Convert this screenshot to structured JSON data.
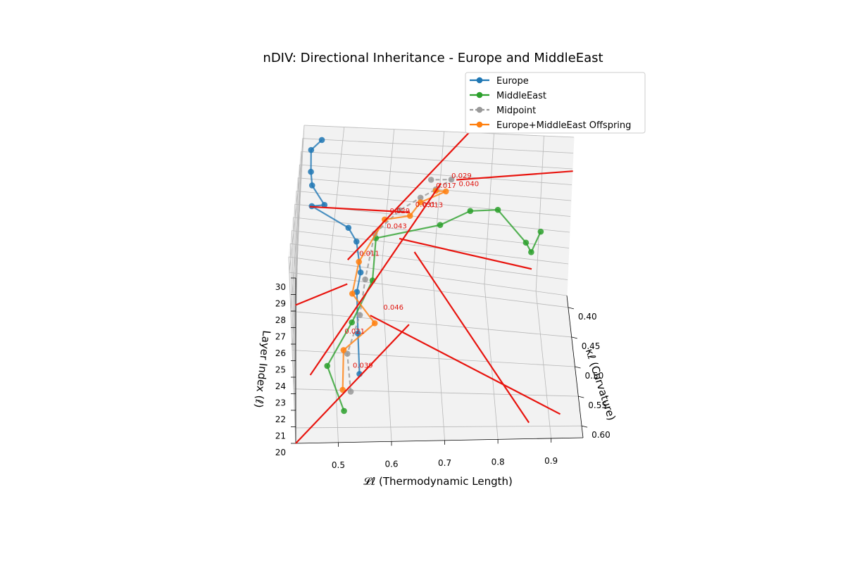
{
  "chart_data": {
    "type": "line",
    "projection": "3d",
    "title": "nDIV: Directional Inheritance - Europe and MiddleEast",
    "xlabel": "𝓛ℓ (Thermodynamic Length)",
    "ylabel": "κℓ (Curvature)",
    "zlabel": "Layer Index (ℓ)",
    "xlim": [
      0.42,
      0.96
    ],
    "ylim": [
      0.38,
      0.62
    ],
    "zlim": [
      20,
      30
    ],
    "x_ticks": [
      "0.5",
      "0.6",
      "0.7",
      "0.8",
      "0.9"
    ],
    "y_ticks": [
      "0.40",
      "0.45",
      "0.50",
      "0.55",
      "0.60"
    ],
    "z_ticks": [
      "20",
      "21",
      "22",
      "23",
      "24",
      "25",
      "26",
      "27",
      "28",
      "29",
      "30"
    ],
    "grid": true,
    "legend_position": "top-right",
    "series": [
      {
        "name": "Europe",
        "color": "#1f77b4",
        "style": "solid",
        "points": [
          [
            0.458,
            0.385,
            29.2
          ],
          [
            0.438,
            0.395,
            28.9
          ],
          [
            0.44,
            0.42,
            28.5
          ],
          [
            0.444,
            0.43,
            28.0
          ],
          [
            0.47,
            0.45,
            27.6
          ],
          [
            0.446,
            0.44,
            27.0
          ],
          [
            0.52,
            0.45,
            26.1
          ],
          [
            0.536,
            0.47,
            26.1
          ],
          [
            0.545,
            0.5,
            25.4
          ],
          [
            0.538,
            0.52,
            25.0
          ],
          [
            0.54,
            0.56,
            24.1
          ],
          [
            0.542,
            0.6,
            23.3
          ]
        ]
      },
      {
        "name": "MiddleEast",
        "color": "#2ca02c",
        "style": "solid",
        "points": [
          [
            0.512,
            0.604,
            21.2
          ],
          [
            0.482,
            0.56,
            22.0
          ],
          [
            0.53,
            0.52,
            23.0
          ],
          [
            0.57,
            0.48,
            24.0
          ],
          [
            0.575,
            0.45,
            25.5
          ],
          [
            0.7,
            0.44,
            26.2
          ],
          [
            0.76,
            0.41,
            26.0
          ],
          [
            0.815,
            0.4,
            25.8
          ],
          [
            0.87,
            0.43,
            25.0
          ],
          [
            0.88,
            0.44,
            24.8
          ],
          [
            0.9,
            0.41,
            25.0
          ]
        ]
      },
      {
        "name": "Midpoint",
        "color": "#999999",
        "style": "dashed",
        "points": [
          [
            0.525,
            0.602,
            22.3
          ],
          [
            0.52,
            0.56,
            22.8
          ],
          [
            0.545,
            0.52,
            23.5
          ],
          [
            0.555,
            0.49,
            24.5
          ],
          [
            0.572,
            0.45,
            25.8
          ],
          [
            0.62,
            0.43,
            26.6
          ],
          [
            0.66,
            0.42,
            27.1
          ],
          [
            0.69,
            0.41,
            27.3
          ],
          [
            0.72,
            0.4,
            27.6
          ],
          [
            0.68,
            0.4,
            27.5
          ]
        ]
      },
      {
        "name": "Europe+MiddleEast Offspring",
        "color": "#ff7f0e",
        "style": "solid",
        "points": [
          [
            0.51,
            0.595,
            22.1
          ],
          [
            0.513,
            0.555,
            22.8
          ],
          [
            0.574,
            0.52,
            23.0
          ],
          [
            0.53,
            0.505,
            24.2
          ],
          [
            0.542,
            0.48,
            25.2
          ],
          [
            0.59,
            0.45,
            26.8
          ],
          [
            0.64,
            0.44,
            26.7
          ],
          [
            0.66,
            0.425,
            27.0
          ],
          [
            0.71,
            0.41,
            27.2
          ],
          [
            0.69,
            0.41,
            27.2
          ]
        ]
      }
    ],
    "annotations": [
      {
        "text": "0.039",
        "x": 0.53,
        "y": 0.575,
        "z": 22.6
      },
      {
        "text": "0.021",
        "x": 0.515,
        "y": 0.545,
        "z": 23.4
      },
      {
        "text": "0.046",
        "x": 0.59,
        "y": 0.52,
        "z": 23.9
      },
      {
        "text": "0.011",
        "x": 0.542,
        "y": 0.48,
        "z": 25.6
      },
      {
        "text": "0.043",
        "x": 0.595,
        "y": 0.45,
        "z": 26.2
      },
      {
        "text": "0.029",
        "x": 0.6,
        "y": 0.44,
        "z": 26.8
      },
      {
        "text": "0.031",
        "x": 0.65,
        "y": 0.43,
        "z": 26.9
      },
      {
        "text": "0.013",
        "x": 0.665,
        "y": 0.43,
        "z": 26.9
      },
      {
        "text": "0.017",
        "x": 0.69,
        "y": 0.41,
        "z": 27.4
      },
      {
        "text": "0.040",
        "x": 0.735,
        "y": 0.405,
        "z": 27.4
      },
      {
        "text": "0.029",
        "x": 0.72,
        "y": 0.4,
        "z": 27.7
      }
    ],
    "arrow_color": "#e8140e",
    "arrows": [
      {
        "from": [
          0.44,
          0.48,
          28.8
        ],
        "to": [
          0.64,
          0.43,
          26.5
        ]
      },
      {
        "from": [
          0.62,
          0.46,
          26.0
        ],
        "to": [
          0.88,
          0.46,
          24.5
        ]
      },
      {
        "from": [
          0.73,
          0.4,
          27.6
        ],
        "to": [
          0.96,
          0.4,
          28.6
        ]
      },
      {
        "from": [
          0.65,
          0.47,
          25.6
        ],
        "to": [
          0.86,
          0.62,
          21.0
        ]
      },
      {
        "from": [
          0.7,
          0.4,
          27.3
        ],
        "to": [
          0.45,
          0.56,
          21.4
        ]
      },
      {
        "from": [
          0.565,
          0.52,
          23.5
        ],
        "to": [
          0.92,
          0.62,
          21.5
        ]
      },
      {
        "from": [
          0.64,
          0.52,
          23.0
        ],
        "to": [
          0.42,
          0.62,
          20.0
        ]
      },
      {
        "from": [
          0.52,
          0.5,
          24.6
        ],
        "to": [
          0.42,
          0.52,
          24.0
        ]
      },
      {
        "from": [
          0.52,
          0.48,
          25.3
        ],
        "to": [
          0.75,
          0.38,
          30.0
        ]
      }
    ]
  }
}
